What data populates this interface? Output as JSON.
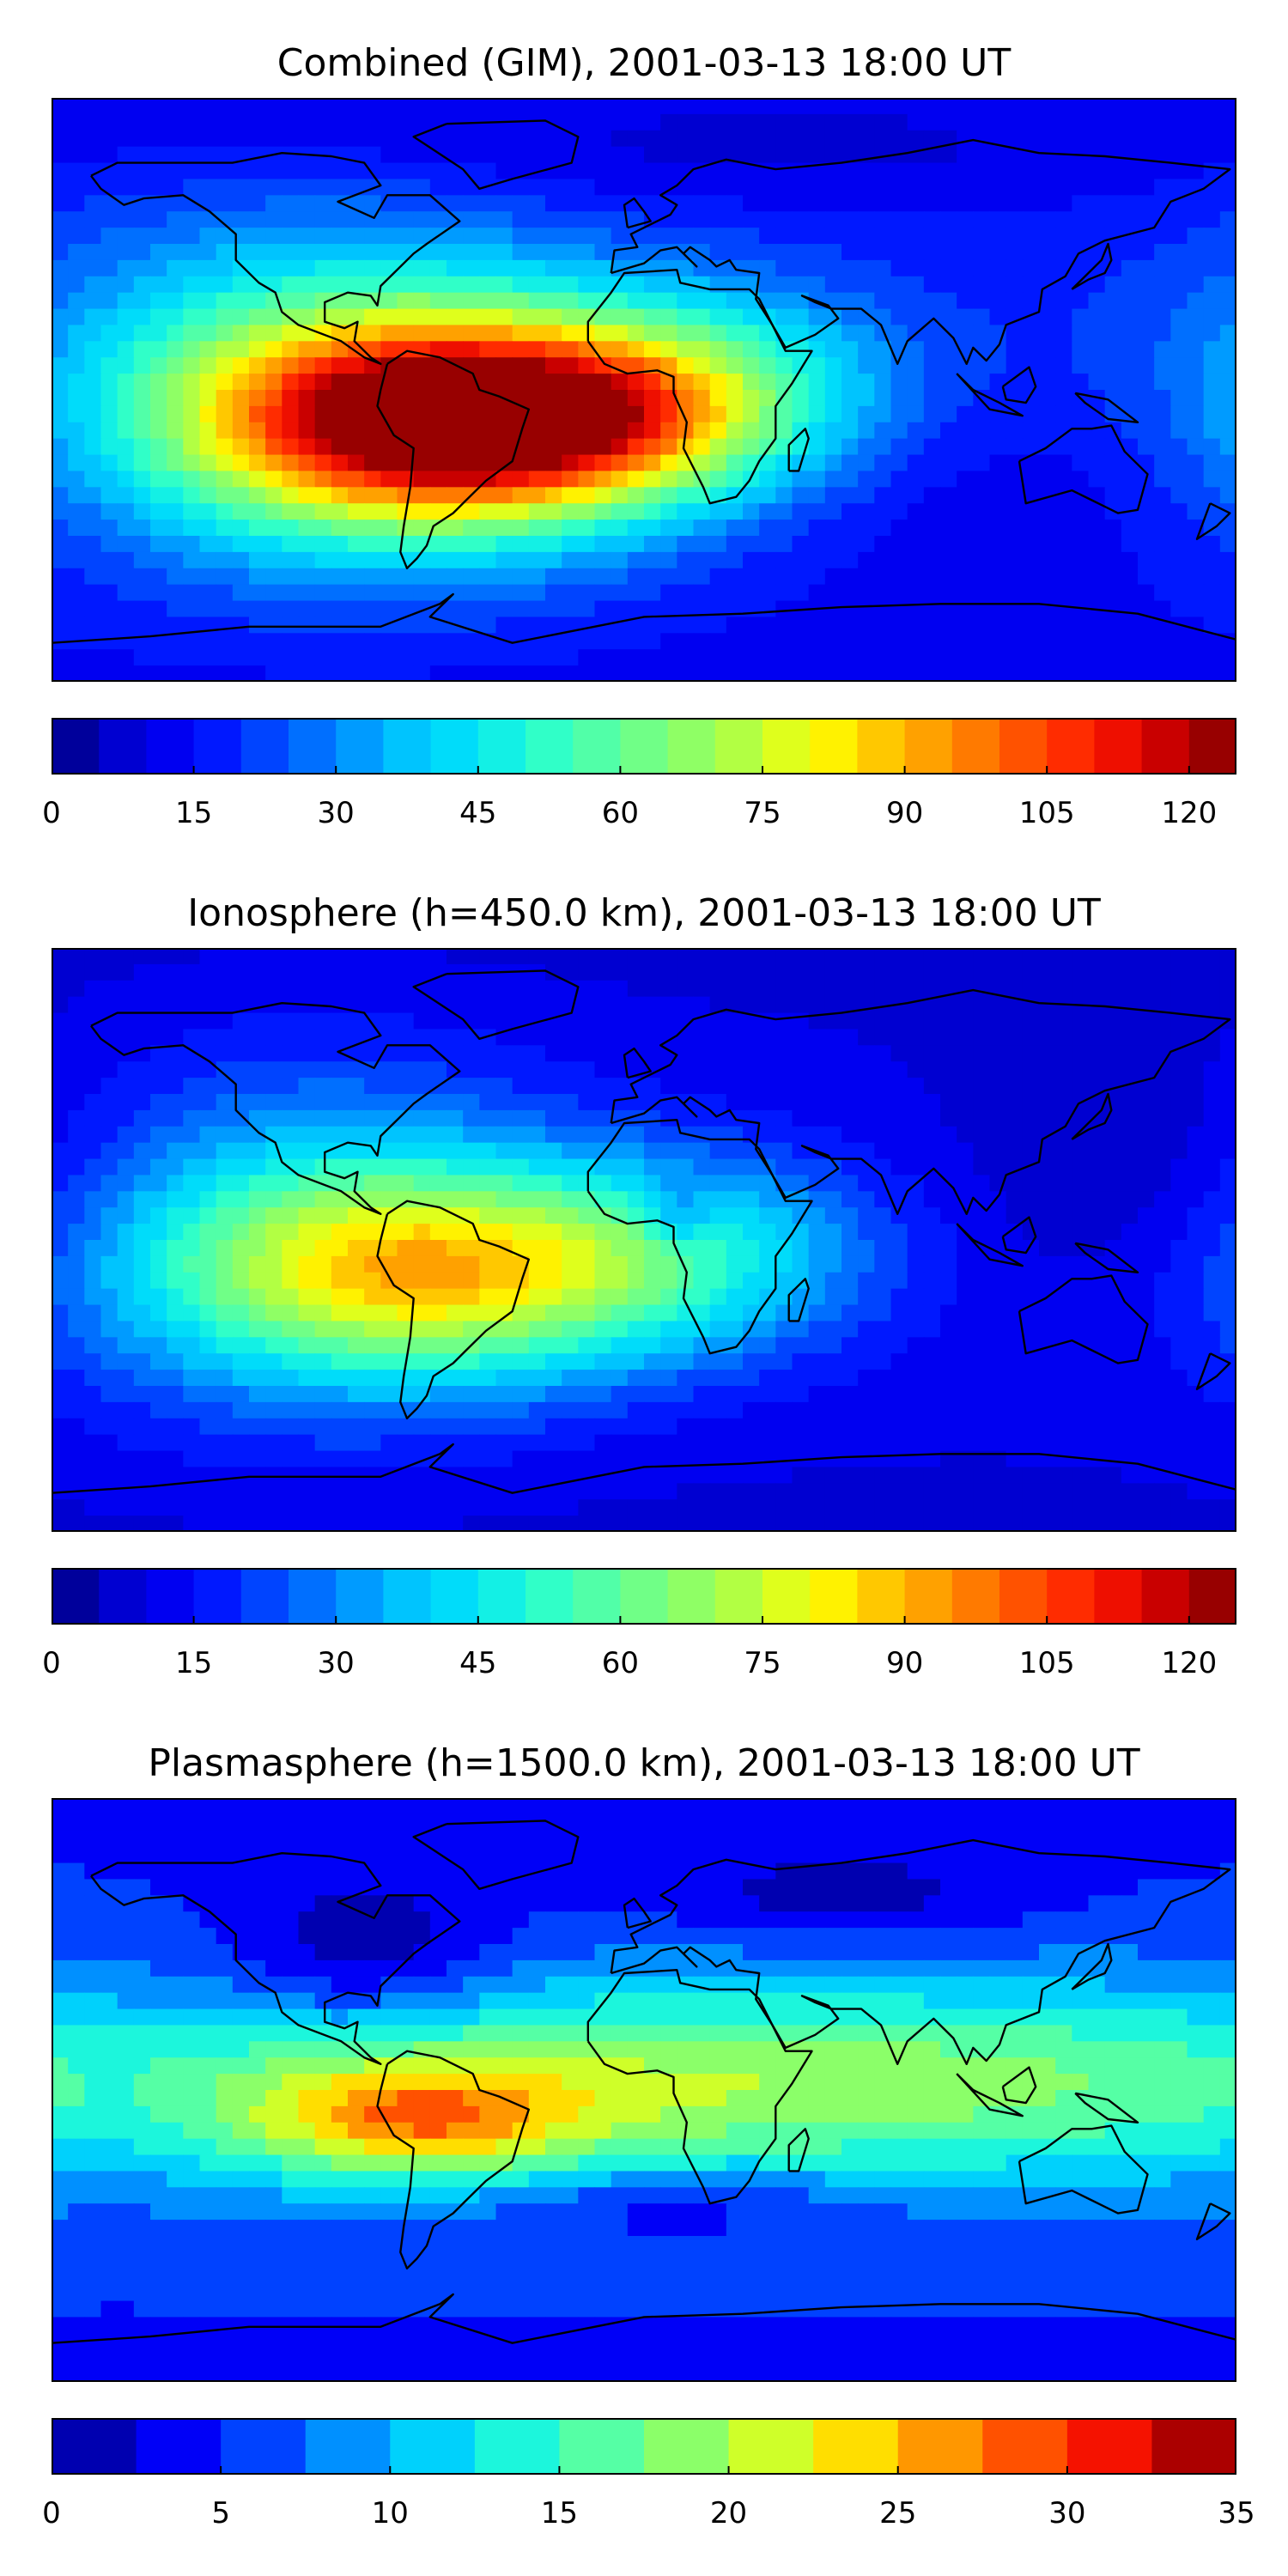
{
  "panels": [
    {
      "title": "Combined (GIM), 2001-03-13 18:00 UT",
      "colorbar": {
        "vmin": 0,
        "vmax": 125,
        "levels": 25,
        "ticks": [
          "0",
          "15",
          "30",
          "45",
          "60",
          "75",
          "90",
          "105",
          "120"
        ],
        "tick_values": [
          0,
          15,
          30,
          45,
          60,
          75,
          90,
          105,
          120
        ]
      },
      "field": {
        "base": 18,
        "blobs": [
          {
            "lon": -55,
            "lat": -10,
            "sx": 55,
            "sy": 22,
            "amp": 95
          },
          {
            "lon": -20,
            "lat": -8,
            "sx": 40,
            "sy": 16,
            "amp": 25
          },
          {
            "lon": -95,
            "lat": 0,
            "sx": 60,
            "sy": 38,
            "amp": 35
          },
          {
            "lon": 25,
            "lat": 5,
            "sx": 40,
            "sy": 20,
            "amp": 18
          },
          {
            "lon": 110,
            "lat": -30,
            "sx": 70,
            "sy": 25,
            "amp": -6
          },
          {
            "lon": 0,
            "lat": 72,
            "sx": 120,
            "sy": 12,
            "amp": -6
          }
        ]
      }
    },
    {
      "title": "Ionosphere  (h=450.0 km), 2001-03-13 18:00 UT",
      "colorbar": {
        "vmin": 0,
        "vmax": 125,
        "levels": 25,
        "ticks": [
          "0",
          "15",
          "30",
          "45",
          "60",
          "75",
          "90",
          "105",
          "120"
        ],
        "tick_values": [
          0,
          15,
          30,
          45,
          60,
          75,
          90,
          105,
          120
        ]
      },
      "field": {
        "base": 12,
        "blobs": [
          {
            "lon": -55,
            "lat": -10,
            "sx": 60,
            "sy": 22,
            "amp": 58
          },
          {
            "lon": -100,
            "lat": 0,
            "sx": 55,
            "sy": 38,
            "amp": 28
          },
          {
            "lon": 20,
            "lat": 0,
            "sx": 40,
            "sy": 20,
            "amp": 15
          },
          {
            "lon": 10,
            "lat": 8,
            "sx": 8,
            "sy": 8,
            "amp": -15
          },
          {
            "lon": 150,
            "lat": 20,
            "sx": 40,
            "sy": 30,
            "amp": -8
          }
        ]
      }
    },
    {
      "title": "Plasmasphere (h=1500.0 km), 2001-03-13 18:00 UT",
      "colorbar": {
        "vmin": 0,
        "vmax": 35,
        "levels": 14,
        "ticks": [
          "0",
          "5",
          "10",
          "15",
          "20",
          "25",
          "30",
          "35"
        ],
        "tick_values": [
          0,
          5,
          10,
          15,
          20,
          25,
          30,
          35
        ]
      },
      "field": {
        "base": 6,
        "blobs": [
          {
            "lon": 20,
            "lat": 2,
            "sx": 180,
            "sy": 22,
            "amp": 14
          },
          {
            "lon": -70,
            "lat": -10,
            "sx": 35,
            "sy": 12,
            "amp": 12
          },
          {
            "lon": -85,
            "lat": 40,
            "sx": 30,
            "sy": 18,
            "amp": -6
          },
          {
            "lon": 60,
            "lat": 60,
            "sx": 40,
            "sy": 10,
            "amp": -4
          },
          {
            "lon": 10,
            "lat": -35,
            "sx": 40,
            "sy": 8,
            "amp": -4
          }
        ]
      }
    }
  ],
  "colormap": [
    "#00007f",
    "#0000d0",
    "#0000ff",
    "#0040ff",
    "#0080ff",
    "#00c0ff",
    "#00e4f8",
    "#29ffce",
    "#5affa0",
    "#86ff6e",
    "#b9ff3c",
    "#ffff00",
    "#ffc200",
    "#ff8900",
    "#ff4f00",
    "#ff1600",
    "#c80000",
    "#7f0000"
  ]
}
